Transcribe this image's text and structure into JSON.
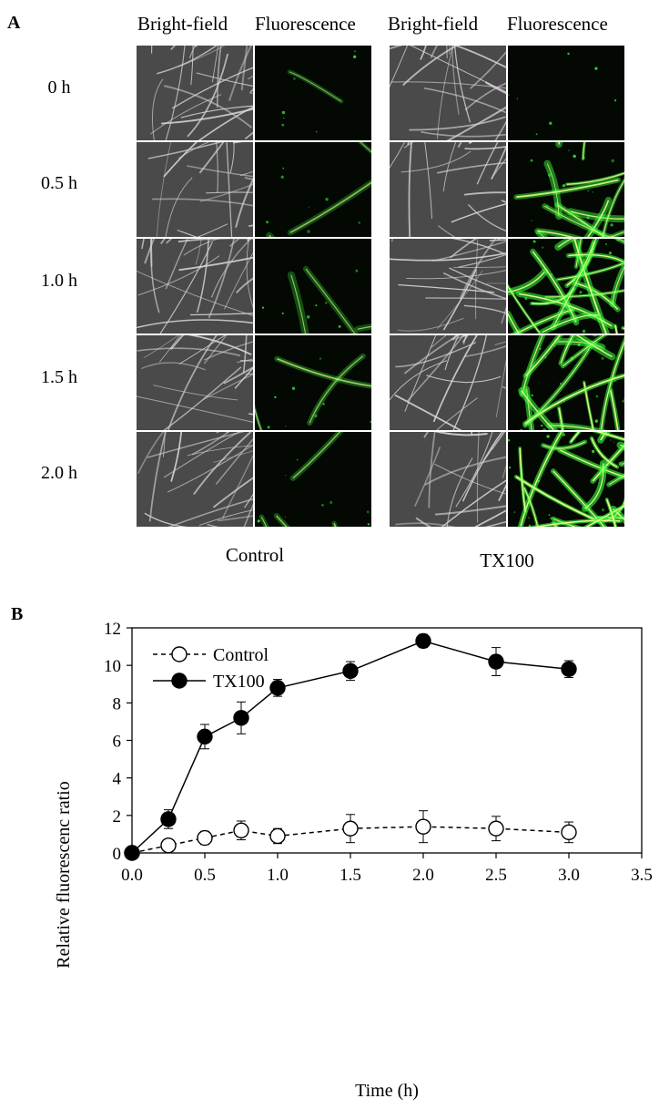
{
  "panel_a": {
    "letter": "A",
    "column_headers": [
      "Bright-field",
      "Fluorescence",
      "Bright-field",
      "Fluorescence"
    ],
    "time_labels": [
      "0 h",
      "0.5 h",
      "1.0 h",
      "1.5 h",
      "2.0 h"
    ],
    "groups": [
      "Control",
      "TX100"
    ],
    "fluorescence_levels": {
      "Control": [
        0.05,
        0.1,
        0.12,
        0.18,
        0.15
      ],
      "TX100": [
        0.08,
        0.65,
        0.9,
        0.85,
        1.0
      ]
    },
    "colors": {
      "brightfield_bg": "#4a4a4a",
      "fiber": "#d8d8d8",
      "fluor_bg": "#030803",
      "fluor_glow": "#3cff3c",
      "fluor_core": "#e6ff8c"
    }
  },
  "panel_b": {
    "letter": "B",
    "chart_data": {
      "type": "line",
      "xlabel": "Time (h)",
      "ylabel": "Relative fluorescenc ratio",
      "xlim": [
        0,
        3.5
      ],
      "ylim": [
        0,
        12
      ],
      "xticks": [
        "0.0",
        "0.5",
        "1.0",
        "1.5",
        "2.0",
        "2.5",
        "3.0",
        "3.5"
      ],
      "yticks": [
        "0",
        "2",
        "4",
        "6",
        "8",
        "10",
        "12"
      ],
      "grid": false,
      "legend_position": "top-left",
      "series": [
        {
          "name": "Control",
          "marker": "open-circle",
          "line_style": "dashed",
          "x": [
            0,
            0.25,
            0.5,
            0.75,
            1.0,
            1.5,
            2.0,
            2.5,
            3.0
          ],
          "y": [
            0,
            0.4,
            0.8,
            1.2,
            0.9,
            1.3,
            1.4,
            1.3,
            1.1
          ],
          "error": [
            0,
            0.15,
            0.35,
            0.5,
            0.4,
            0.75,
            0.85,
            0.65,
            0.55
          ]
        },
        {
          "name": "TX100",
          "marker": "filled-circle",
          "line_style": "solid",
          "x": [
            0,
            0.25,
            0.5,
            0.75,
            1.0,
            1.5,
            2.0,
            2.5,
            3.0
          ],
          "y": [
            0,
            1.8,
            6.2,
            7.2,
            8.8,
            9.7,
            11.3,
            10.2,
            9.8
          ],
          "error": [
            0,
            0.5,
            0.65,
            0.85,
            0.45,
            0.5,
            0.35,
            0.75,
            0.45
          ]
        }
      ]
    }
  }
}
